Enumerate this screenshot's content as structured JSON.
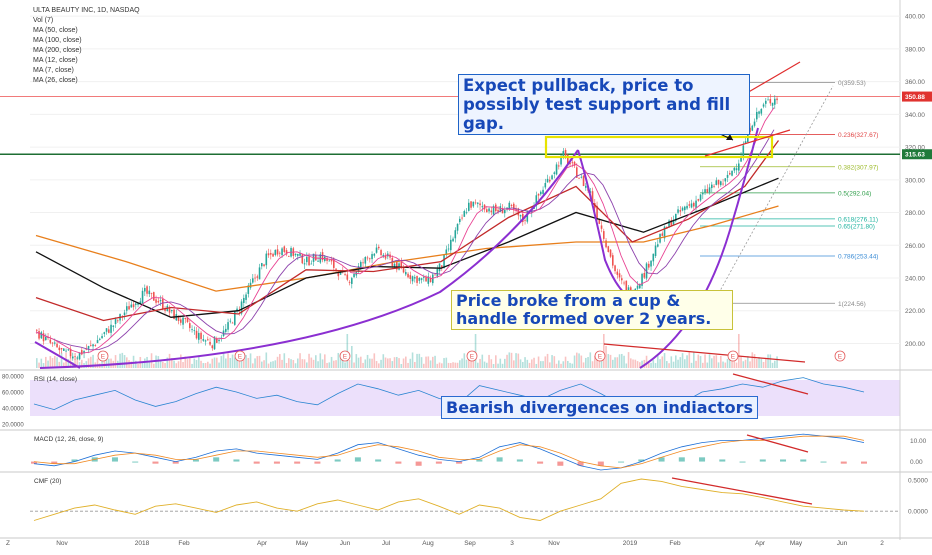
{
  "header": {
    "symbol": "ULTA BEAUTY INC, 1D, NASDAQ",
    "indicators": [
      "Vol (7)",
      "MA (50, close)",
      "MA (100, close)",
      "MA (200, close)",
      "MA (12, close)",
      "MA (7, close)",
      "MA (26, close)"
    ]
  },
  "annotations": {
    "pullback": "Expect pullback, price to possibly test support and fill gap.",
    "cup_handle": "Price broke from a cup & handle formed over 2 years.",
    "divergence": "Bearish divergences on indiactors"
  },
  "price_axis": {
    "ticks": [
      "400.00",
      "380.00",
      "360.00",
      "340.00",
      "320.00",
      "300.00",
      "280.00",
      "260.00",
      "240.00",
      "220.00",
      "200.00"
    ],
    "last_price": "350.88",
    "support_price": "315.63"
  },
  "fib_levels": [
    {
      "label": "0(359.53)",
      "value": 359.53,
      "color": "#8a8a8a"
    },
    {
      "label": "0.236(327.67)",
      "value": 327.67,
      "color": "#e04646"
    },
    {
      "label": "0.382(307.97)",
      "value": 307.97,
      "color": "#9dbb2c"
    },
    {
      "label": "0.5(292.04)",
      "value": 292.04,
      "color": "#2f9e4a"
    },
    {
      "label": "0.618(276.11)",
      "value": 276.11,
      "color": "#1fb39f"
    },
    {
      "label": "0.65(271.80)",
      "value": 271.8,
      "color": "#1fb39f"
    },
    {
      "label": "0.786(253.44)",
      "value": 253.44,
      "color": "#3c8dd6"
    },
    {
      "label": "1(224.56)",
      "value": 224.56,
      "color": "#8a8a8a"
    }
  ],
  "rsi": {
    "label": "RSI (14, close)",
    "ticks": [
      "80.0000",
      "60.0000",
      "40.0000",
      "20.0000"
    ]
  },
  "macd": {
    "label": "MACD (12, 26, close, 9)",
    "ticks": [
      "10.00",
      "0.00"
    ]
  },
  "cmf": {
    "label": "CMF (20)",
    "ticks": [
      "0.5000",
      "0.0000"
    ]
  },
  "time_axis": [
    "Nov",
    "2018",
    "Feb",
    "Apr",
    "May",
    "Jun",
    "Jul",
    "Aug",
    "Sep",
    "3",
    "Nov",
    "2019",
    "Feb",
    "Apr",
    "May",
    "Jun",
    "2"
  ],
  "corner": "Z",
  "chart_data": {
    "type": "candlestick",
    "symbol": "ULTA BEAUTY INC",
    "interval": "1D",
    "exchange": "NASDAQ",
    "ylim": [
      185,
      405
    ],
    "price_series": [
      [
        0,
        207
      ],
      [
        6,
        200
      ],
      [
        12,
        194
      ],
      [
        18,
        193
      ],
      [
        24,
        198
      ],
      [
        30,
        206
      ],
      [
        36,
        214
      ],
      [
        42,
        224
      ],
      [
        48,
        231
      ],
      [
        54,
        226
      ],
      [
        60,
        218
      ],
      [
        66,
        212
      ],
      [
        72,
        204
      ],
      [
        78,
        200
      ],
      [
        84,
        208
      ],
      [
        90,
        222
      ],
      [
        96,
        238
      ],
      [
        102,
        252
      ],
      [
        108,
        258
      ],
      [
        114,
        255
      ],
      [
        120,
        250
      ],
      [
        126,
        254
      ],
      [
        132,
        247
      ],
      [
        138,
        238
      ],
      [
        144,
        248
      ],
      [
        150,
        257
      ],
      [
        156,
        252
      ],
      [
        162,
        245
      ],
      [
        168,
        240
      ],
      [
        174,
        238
      ],
      [
        180,
        248
      ],
      [
        186,
        268
      ],
      [
        192,
        285
      ],
      [
        198,
        284
      ],
      [
        204,
        281
      ],
      [
        210,
        283
      ],
      [
        216,
        275
      ],
      [
        222,
        288
      ],
      [
        228,
        302
      ],
      [
        234,
        315
      ],
      [
        240,
        304
      ],
      [
        246,
        292
      ],
      [
        252,
        266
      ],
      [
        258,
        240
      ],
      [
        264,
        231
      ],
      [
        270,
        243
      ],
      [
        276,
        262
      ],
      [
        282,
        275
      ],
      [
        288,
        283
      ],
      [
        294,
        288
      ],
      [
        300,
        296
      ],
      [
        306,
        299
      ],
      [
        312,
        312
      ],
      [
        318,
        336
      ],
      [
        324,
        347
      ],
      [
        330,
        351
      ]
    ],
    "moving_averages": [
      {
        "name": "MA (200, close)",
        "color": "#e87f1c",
        "points": [
          [
            0,
            266
          ],
          [
            40,
            250
          ],
          [
            80,
            232
          ],
          [
            120,
            240
          ],
          [
            160,
            250
          ],
          [
            200,
            258
          ],
          [
            240,
            262
          ],
          [
            270,
            262
          ],
          [
            300,
            272
          ],
          [
            330,
            284
          ]
        ]
      },
      {
        "name": "MA (100, close)",
        "color": "#111111",
        "points": [
          [
            0,
            256
          ],
          [
            30,
            234
          ],
          [
            60,
            216
          ],
          [
            90,
            220
          ],
          [
            120,
            240
          ],
          [
            150,
            247
          ],
          [
            180,
            246
          ],
          [
            210,
            262
          ],
          [
            240,
            280
          ],
          [
            270,
            268
          ],
          [
            300,
            284
          ],
          [
            330,
            301
          ]
        ]
      },
      {
        "name": "MA (50, close)",
        "color": "#c22a2a",
        "points": [
          [
            0,
            228
          ],
          [
            30,
            214
          ],
          [
            60,
            222
          ],
          [
            90,
            218
          ],
          [
            120,
            245
          ],
          [
            150,
            244
          ],
          [
            180,
            250
          ],
          [
            210,
            277
          ],
          [
            240,
            296
          ],
          [
            265,
            262
          ],
          [
            290,
            276
          ],
          [
            315,
            296
          ],
          [
            330,
            324
          ]
        ]
      }
    ],
    "rsi": {
      "name": "RSI (14, close)",
      "ylim": [
        15,
        85
      ],
      "values": [
        45,
        38,
        50,
        56,
        62,
        50,
        42,
        48,
        58,
        66,
        60,
        52,
        56,
        48,
        44,
        58,
        70,
        64,
        56,
        62,
        52,
        46,
        68,
        62,
        56,
        50,
        62,
        70,
        58,
        44,
        32,
        28,
        46,
        60,
        64,
        70,
        66,
        74,
        78,
        70,
        66,
        60
      ]
    },
    "macd": {
      "name": "MACD (12, 26, close, 9)",
      "ylim": [
        -4,
        14
      ],
      "macd": [
        -1,
        -2,
        0,
        3,
        5,
        4,
        2,
        0,
        2,
        5,
        6,
        4,
        3,
        2,
        1,
        4,
        8,
        9,
        6,
        3,
        1,
        0,
        2,
        7,
        9,
        6,
        2,
        -2,
        -4,
        -3,
        0,
        4,
        7,
        9,
        10,
        10,
        11,
        12,
        13,
        12,
        11,
        9
      ],
      "signal": [
        0,
        -1,
        -1,
        1,
        3,
        4,
        3,
        1,
        1,
        3,
        5,
        5,
        4,
        3,
        2,
        3,
        6,
        8,
        7,
        5,
        2,
        1,
        1,
        5,
        8,
        7,
        4,
        0,
        -2,
        -3,
        -1,
        2,
        5,
        7,
        9,
        10,
        10,
        11,
        12,
        12,
        12,
        10
      ]
    },
    "cmf": {
      "name": "CMF (20)",
      "ylim": [
        -0.4,
        0.6
      ],
      "values": [
        -0.15,
        -0.05,
        0.05,
        0.1,
        0.02,
        -0.05,
        0.08,
        0.12,
        0.05,
        -0.02,
        0.1,
        0.15,
        0.05,
        0.0,
        0.12,
        0.18,
        0.1,
        0.02,
        0.15,
        0.2,
        0.08,
        -0.05,
        0.1,
        0.05,
        -0.1,
        -0.15,
        0.0,
        0.1,
        0.2,
        0.45,
        0.52,
        0.48,
        0.4,
        0.35,
        0.3,
        0.28,
        0.22,
        0.15,
        0.08,
        0.05,
        0.02,
        0.0
      ]
    }
  }
}
